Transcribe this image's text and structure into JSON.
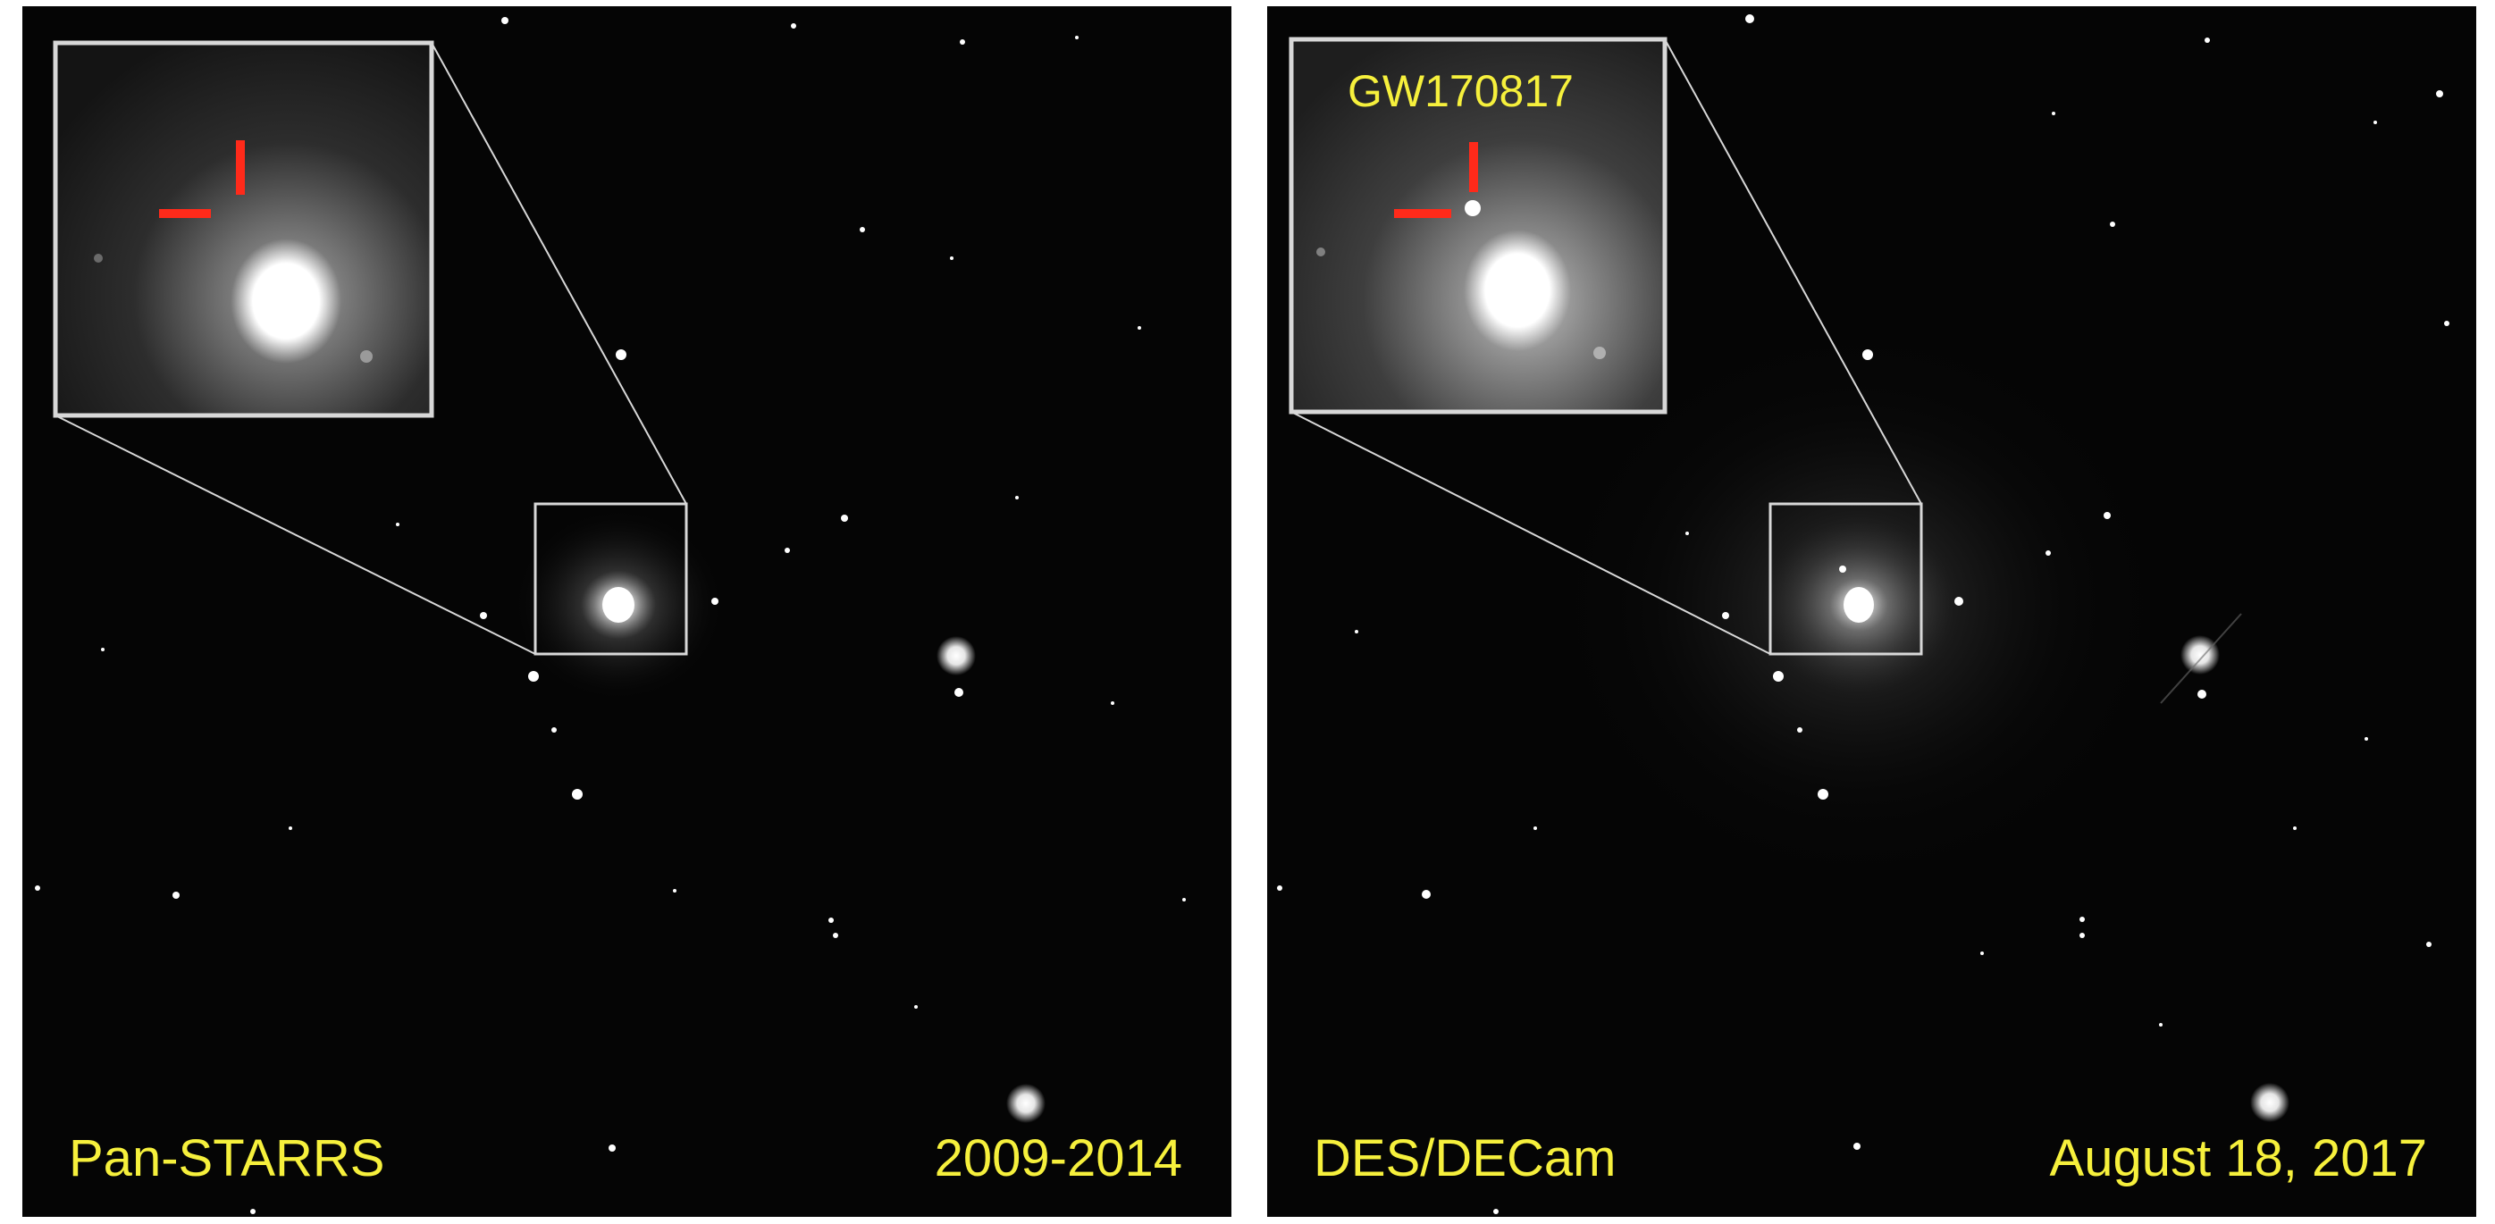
{
  "panels": [
    {
      "id": "pre-event",
      "survey_label": "Pan-STARRS",
      "date_label": "2009-2014",
      "transient_visible": false
    },
    {
      "id": "post-event",
      "survey_label": "DES/DECam",
      "date_label": "August 18, 2017",
      "transient_visible": true,
      "transient_label": "GW170817"
    }
  ],
  "colors": {
    "label": "#f6f03c",
    "marker": "#ff2a1a",
    "box": "#d8d8d8",
    "sky": "#050505"
  }
}
